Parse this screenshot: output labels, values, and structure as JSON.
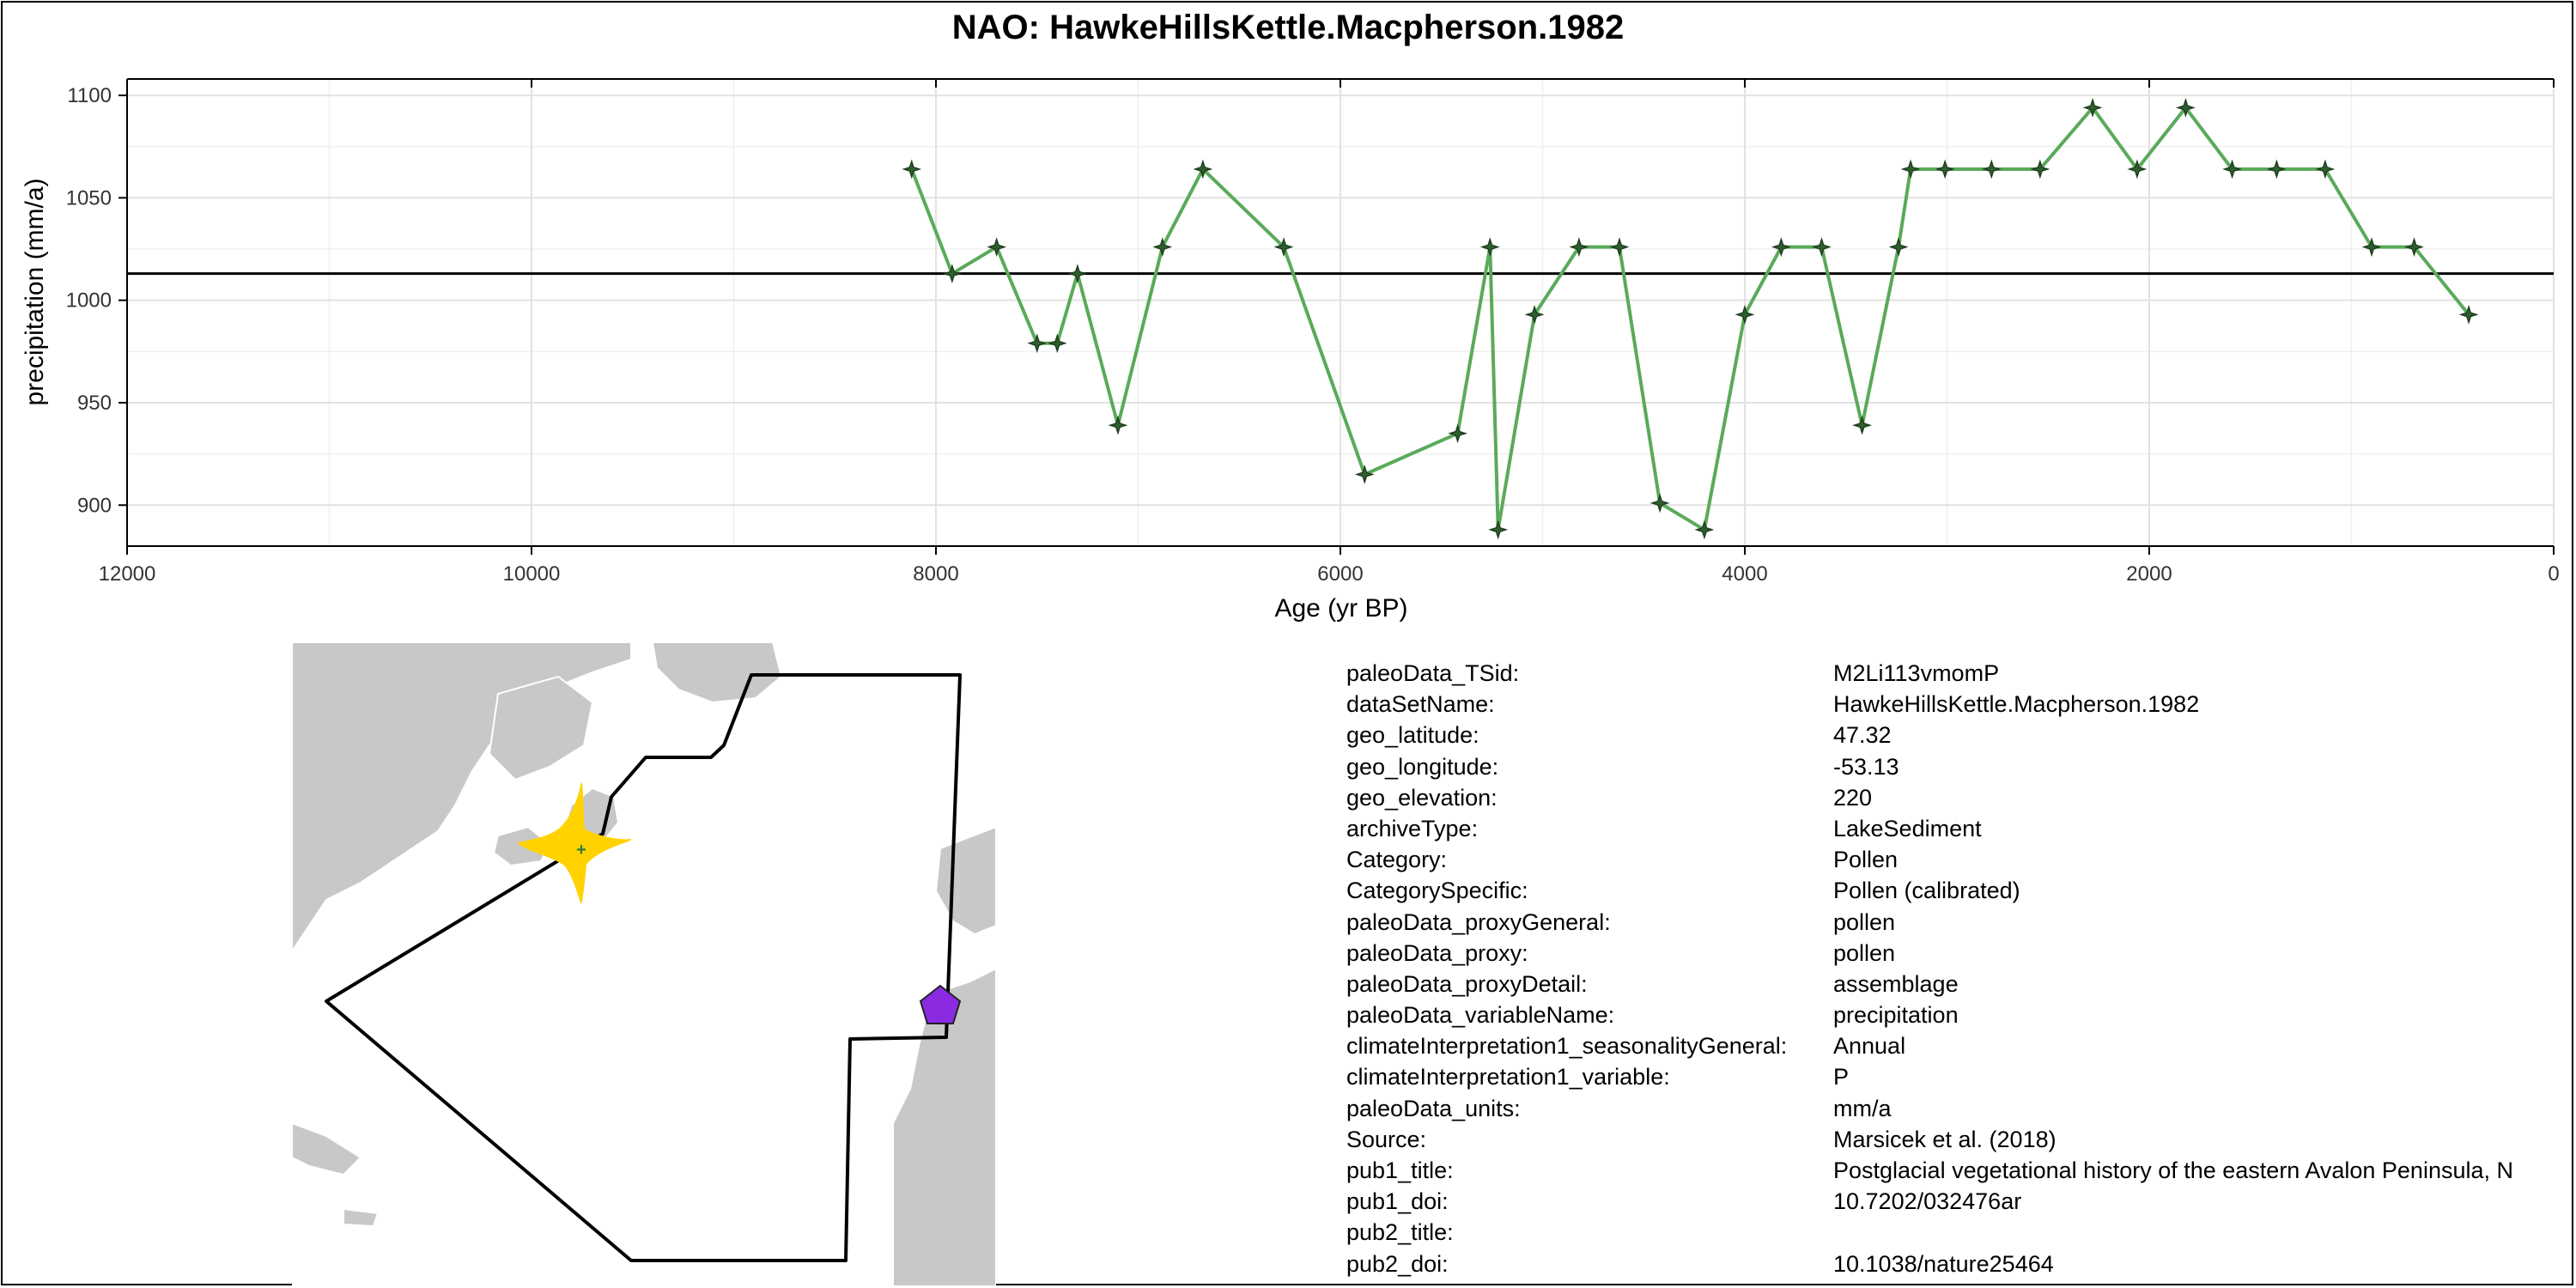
{
  "title": "NAO: HawkeHillsKettle.Macpherson.1982",
  "chart_data": {
    "type": "line",
    "title": "NAO: HawkeHillsKettle.Macpherson.1982",
    "xlabel": "Age (yr BP)",
    "ylabel": "precipitation (mm/a)",
    "xlim": [
      12000,
      0
    ],
    "x_reversed": true,
    "ylim": [
      880,
      1108
    ],
    "x_ticks": [
      12000,
      10000,
      8000,
      6000,
      4000,
      2000,
      0
    ],
    "x_tick_labels": [
      "12000",
      "10000",
      "8000",
      "6000",
      "4000",
      "2000",
      "0"
    ],
    "y_ticks": [
      900,
      950,
      1000,
      1050,
      1100
    ],
    "y_tick_labels": [
      "900",
      "950",
      "1000",
      "1050",
      "1100"
    ],
    "grid": true,
    "reference_line": 1013,
    "series_color": "#5aaa5a",
    "marker_color": "#2f5f2f",
    "series": [
      {
        "x": [
          8120,
          7920,
          7700,
          7500,
          7400,
          7300,
          7100,
          6880,
          6680,
          6280,
          5880,
          5420,
          5260,
          5220,
          5040,
          4820,
          4620,
          4420,
          4200,
          4000,
          3820,
          3620,
          3420,
          3240,
          3180,
          3010,
          2780,
          2540,
          2280,
          2060,
          1820,
          1590,
          1370,
          1130,
          900,
          690,
          420
        ],
        "y": [
          1064,
          1013,
          1026,
          979,
          979,
          1013,
          939,
          1026,
          1064,
          1026,
          915,
          935,
          1026,
          888,
          993,
          1026,
          1026,
          901,
          888,
          993,
          1026,
          1026,
          939,
          1026,
          1064,
          1064,
          1064,
          1064,
          1094,
          1064,
          1094,
          1064,
          1064,
          1064,
          1026,
          1026,
          993
        ]
      }
    ]
  },
  "map": {
    "site_marker": "yellow-star-marker",
    "site_color": "#ffd200",
    "other_marker": "purple-pentagon-marker",
    "other_color": "#8a2be2",
    "land_color": "#c8c8c8"
  },
  "metadata": [
    {
      "key": "paleoData_TSid:",
      "value": "M2Li113vmomP"
    },
    {
      "key": "dataSetName:",
      "value": "HawkeHillsKettle.Macpherson.1982"
    },
    {
      "key": "geo_latitude:",
      "value": "47.32"
    },
    {
      "key": "geo_longitude:",
      "value": "-53.13"
    },
    {
      "key": "geo_elevation:",
      "value": "220"
    },
    {
      "key": "archiveType:",
      "value": "LakeSediment"
    },
    {
      "key": "Category:",
      "value": "Pollen"
    },
    {
      "key": "CategorySpecific:",
      "value": "Pollen (calibrated)"
    },
    {
      "key": "paleoData_proxyGeneral:",
      "value": "pollen"
    },
    {
      "key": "paleoData_proxy:",
      "value": "pollen"
    },
    {
      "key": "paleoData_proxyDetail:",
      "value": "assemblage"
    },
    {
      "key": "paleoData_variableName:",
      "value": "precipitation"
    },
    {
      "key": "climateInterpretation1_seasonalityGeneral:",
      "value": "Annual"
    },
    {
      "key": "climateInterpretation1_variable:",
      "value": "P"
    },
    {
      "key": "paleoData_units:",
      "value": "mm/a"
    },
    {
      "key": "Source:",
      "value": "Marsicek et al. (2018)"
    },
    {
      "key": "pub1_title:",
      "value": "Postglacial vegetational history of the eastern Avalon Peninsula, N"
    },
    {
      "key": "pub1_doi:",
      "value": "10.7202/032476ar"
    },
    {
      "key": "pub2_title:",
      "value": ""
    },
    {
      "key": "pub2_doi:",
      "value": "10.1038/nature25464"
    }
  ]
}
